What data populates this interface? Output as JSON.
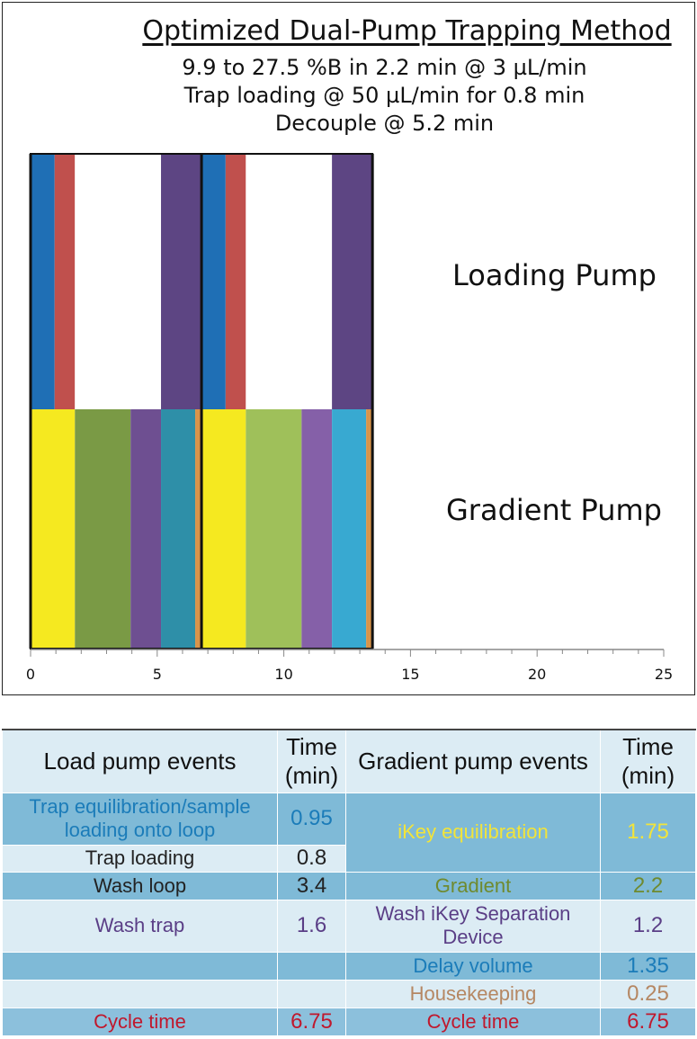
{
  "chart_data": {
    "type": "bar",
    "title": "Optimized Dual-Pump Trapping Method",
    "subtitle_lines": [
      "9.9 to 27.5 %B in 2.2 min @ 3 µL/min",
      "Trap loading @ 50 µL/min for 0.8 min",
      "Decouple @ 5.2 min"
    ],
    "orientation": "horizontal-stacked",
    "xlim": [
      0,
      25
    ],
    "xticks": [
      0,
      5,
      10,
      15,
      20,
      25
    ],
    "xtick_labels": [
      "0",
      "5",
      "10",
      "15",
      "20",
      "25"
    ],
    "rows": [
      {
        "name": "Loading Pump",
        "segments": [
          {
            "start": 0,
            "duration": 0.95,
            "color": "#1f6fb5"
          },
          {
            "start": 0.95,
            "duration": 0.8,
            "color": "#c0504d"
          },
          {
            "start": 1.75,
            "duration": 3.4,
            "color": "#ffffff"
          },
          {
            "start": 5.15,
            "duration": 1.6,
            "color": "#5d4583"
          },
          {
            "start": 6.75,
            "duration": 0.95,
            "color": "#1f6fb5"
          },
          {
            "start": 7.7,
            "duration": 0.8,
            "color": "#c0504d"
          },
          {
            "start": 8.5,
            "duration": 3.4,
            "color": "#ffffff"
          },
          {
            "start": 11.9,
            "duration": 1.6,
            "color": "#5d4583"
          }
        ]
      },
      {
        "name": "Gradient Pump",
        "segments": [
          {
            "start": 0,
            "duration": 1.75,
            "color": "#f5e920"
          },
          {
            "start": 1.75,
            "duration": 2.2,
            "color": "#7a9a45"
          },
          {
            "start": 3.95,
            "duration": 1.2,
            "color": "#6e4f91"
          },
          {
            "start": 5.15,
            "duration": 1.35,
            "color": "#2e8fa8"
          },
          {
            "start": 6.5,
            "duration": 0.25,
            "color": "#d9944a"
          },
          {
            "start": 6.75,
            "duration": 1.75,
            "color": "#f5e920"
          },
          {
            "start": 8.5,
            "duration": 2.2,
            "color": "#9fc05a"
          },
          {
            "start": 10.7,
            "duration": 1.2,
            "color": "#8560a8"
          },
          {
            "start": 11.9,
            "duration": 1.35,
            "color": "#38a9d1"
          },
          {
            "start": 13.25,
            "duration": 0.25,
            "color": "#d9944a"
          }
        ]
      }
    ],
    "cycle_markers": [
      0,
      6.75,
      13.5
    ]
  },
  "table": {
    "headers": [
      "Load pump events",
      "Time (min)",
      "Gradient pump events",
      "Time (min)"
    ],
    "load": {
      "trap_equilibration": "Trap equilibration/sample loading onto loop",
      "trap_equilibration_time": "0.95",
      "trap_loading": "Trap loading",
      "trap_loading_time": "0.8",
      "wash_loop": "Wash loop",
      "wash_loop_time": "3.4",
      "wash_trap": "Wash trap",
      "wash_trap_time": "1.6",
      "cycle_time": "Cycle time",
      "cycle_time_value": "6.75"
    },
    "gradient": {
      "ikey_equilibration": "iKey equilibration",
      "ikey_equilibration_time": "1.75",
      "gradient": "Gradient",
      "gradient_time": "2.2",
      "wash_ikey": "Wash iKey Separation Device",
      "wash_ikey_time": "1.2",
      "delay_volume": "Delay volume",
      "delay_volume_time": "1.35",
      "housekeeping": "Housekeeping",
      "housekeeping_time": "0.25",
      "cycle_time": "Cycle time",
      "cycle_time_value": "6.75"
    }
  }
}
